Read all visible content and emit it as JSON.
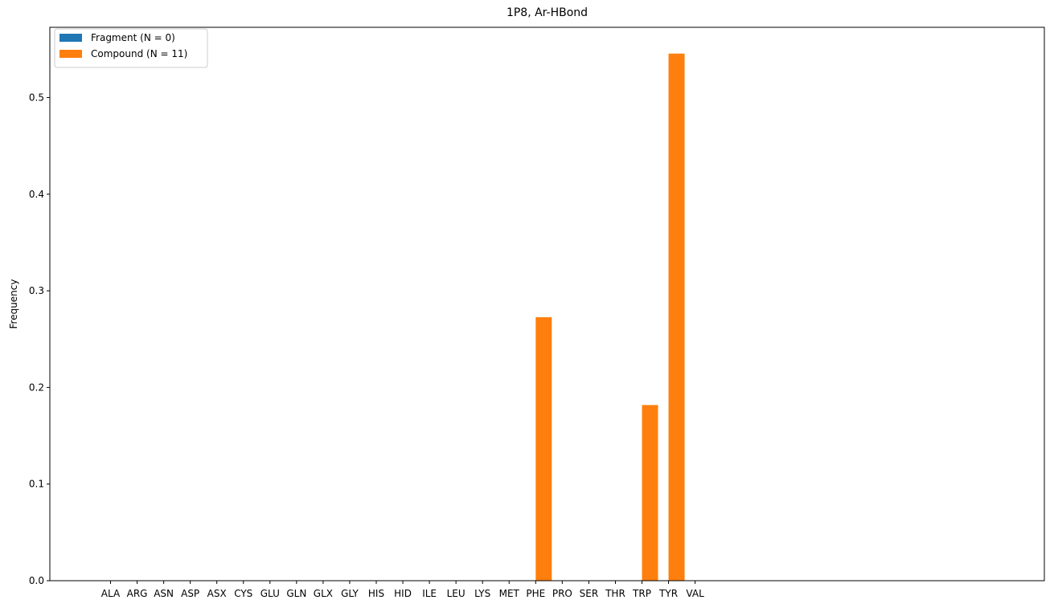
{
  "chart_data": {
    "type": "bar",
    "title": "1P8, Ar-HBond",
    "xlabel": "",
    "ylabel": "Frequency",
    "ylim": [
      0,
      0.5727
    ],
    "yticks": [
      0.0,
      0.1,
      0.2,
      0.3,
      0.4,
      0.5
    ],
    "ytick_labels": [
      "0.0",
      "0.1",
      "0.2",
      "0.3",
      "0.4",
      "0.5"
    ],
    "categories": [
      "ALA",
      "ARG",
      "ASN",
      "ASP",
      "ASX",
      "CYS",
      "GLU",
      "GLN",
      "GLX",
      "GLY",
      "HIS",
      "HID",
      "ILE",
      "LEU",
      "LYS",
      "MET",
      "PHE",
      "PRO",
      "SER",
      "THR",
      "TRP",
      "TYR",
      "VAL"
    ],
    "series": [
      {
        "name": "Fragment (N = 0)",
        "color": "#1f77b4",
        "values": [
          0,
          0,
          0,
          0,
          0,
          0,
          0,
          0,
          0,
          0,
          0,
          0,
          0,
          0,
          0,
          0,
          0,
          0,
          0,
          0,
          0,
          0,
          0
        ]
      },
      {
        "name": "Compound (N = 11)",
        "color": "#ff7f0e",
        "values": [
          0,
          0,
          0,
          0,
          0,
          0,
          0,
          0,
          0,
          0,
          0,
          0,
          0,
          0,
          0,
          0,
          0.2727,
          0,
          0,
          0,
          0.1818,
          0.5455,
          0
        ]
      }
    ],
    "legend": "top-left",
    "grid": false
  }
}
